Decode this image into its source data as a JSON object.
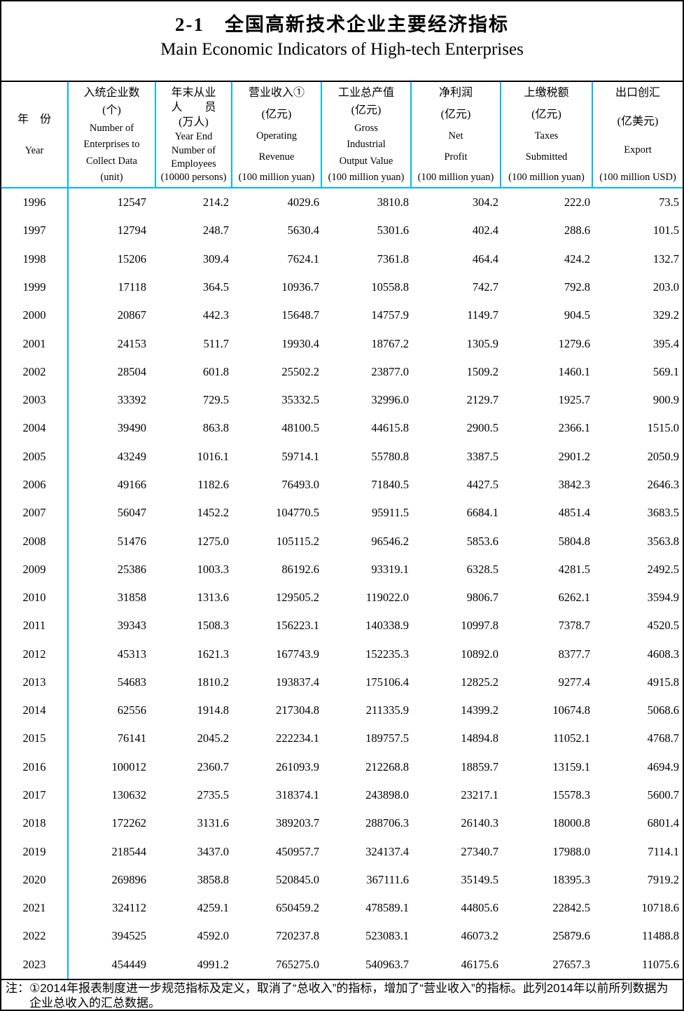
{
  "title": {
    "zh": "2-1　全国高新技术企业主要经济指标",
    "en": "Main Economic Indicators of High-tech Enterprises"
  },
  "colors": {
    "grid_accent": "#00B9F2",
    "outer_border": "#000000",
    "text": "#000000"
  },
  "table": {
    "year_header": {
      "zh": "年　份",
      "en": "Year"
    },
    "columns": [
      {
        "id": "enterprises-count",
        "lines": [
          "入统企业数",
          "(个)",
          "Number of",
          "Enterprises to",
          "Collect Data",
          "(unit)"
        ]
      },
      {
        "id": "year-end-employees",
        "lines": [
          "年末从业",
          "人　　员",
          "(万人)",
          "Year End",
          "Number of",
          "Employees",
          "(10000 persons)"
        ]
      },
      {
        "id": "operating-revenue",
        "lines": [
          "营业收入①",
          "(亿元)",
          "Operating",
          "Revenue",
          "(100 million yuan)"
        ]
      },
      {
        "id": "gross-industrial-output-value",
        "lines": [
          "工业总产值",
          "(亿元)",
          "Gross",
          "Industrial",
          "Output Value",
          "(100 million yuan)"
        ]
      },
      {
        "id": "net-profit",
        "lines": [
          "净利润",
          "(亿元)",
          "Net",
          "Profit",
          "(100 million yuan)"
        ]
      },
      {
        "id": "taxes-submitted",
        "lines": [
          "上缴税额",
          "(亿元)",
          "Taxes",
          "Submitted",
          "(100 million yuan)"
        ]
      },
      {
        "id": "export",
        "lines": [
          "出口创汇",
          "(亿美元)",
          "Export",
          "(100 million USD)"
        ]
      }
    ],
    "rows": [
      {
        "year": "1996",
        "values": [
          "12547",
          "214.2",
          "4029.6",
          "3810.8",
          "304.2",
          "222.0",
          "73.5"
        ]
      },
      {
        "year": "1997",
        "values": [
          "12794",
          "248.7",
          "5630.4",
          "5301.6",
          "402.4",
          "288.6",
          "101.5"
        ]
      },
      {
        "year": "1998",
        "values": [
          "15206",
          "309.4",
          "7624.1",
          "7361.8",
          "464.4",
          "424.2",
          "132.7"
        ]
      },
      {
        "year": "1999",
        "values": [
          "17118",
          "364.5",
          "10936.7",
          "10558.8",
          "742.7",
          "792.8",
          "203.0"
        ]
      },
      {
        "year": "2000",
        "values": [
          "20867",
          "442.3",
          "15648.7",
          "14757.9",
          "1149.7",
          "904.5",
          "329.2"
        ]
      },
      {
        "year": "2001",
        "values": [
          "24153",
          "511.7",
          "19930.4",
          "18767.2",
          "1305.9",
          "1279.6",
          "395.4"
        ]
      },
      {
        "year": "2002",
        "values": [
          "28504",
          "601.8",
          "25502.2",
          "23877.0",
          "1509.2",
          "1460.1",
          "569.1"
        ]
      },
      {
        "year": "2003",
        "values": [
          "33392",
          "729.5",
          "35332.5",
          "32996.0",
          "2129.7",
          "1925.7",
          "900.9"
        ]
      },
      {
        "year": "2004",
        "values": [
          "39490",
          "863.8",
          "48100.5",
          "44615.8",
          "2900.5",
          "2366.1",
          "1515.0"
        ]
      },
      {
        "year": "2005",
        "values": [
          "43249",
          "1016.1",
          "59714.1",
          "55780.8",
          "3387.5",
          "2901.2",
          "2050.9"
        ]
      },
      {
        "year": "2006",
        "values": [
          "49166",
          "1182.6",
          "76493.0",
          "71840.5",
          "4427.5",
          "3842.3",
          "2646.3"
        ]
      },
      {
        "year": "2007",
        "values": [
          "56047",
          "1452.2",
          "104770.5",
          "95911.5",
          "6684.1",
          "4851.4",
          "3683.5"
        ]
      },
      {
        "year": "2008",
        "values": [
          "51476",
          "1275.0",
          "105115.2",
          "96546.2",
          "5853.6",
          "5804.8",
          "3563.8"
        ]
      },
      {
        "year": "2009",
        "values": [
          "25386",
          "1003.3",
          "86192.6",
          "93319.1",
          "6328.5",
          "4281.5",
          "2492.5"
        ]
      },
      {
        "year": "2010",
        "values": [
          "31858",
          "1313.6",
          "129505.2",
          "119022.0",
          "9806.7",
          "6262.1",
          "3594.9"
        ]
      },
      {
        "year": "2011",
        "values": [
          "39343",
          "1508.3",
          "156223.1",
          "140338.9",
          "10997.8",
          "7378.7",
          "4520.5"
        ]
      },
      {
        "year": "2012",
        "values": [
          "45313",
          "1621.3",
          "167743.9",
          "152235.3",
          "10892.0",
          "8377.7",
          "4608.3"
        ]
      },
      {
        "year": "2013",
        "values": [
          "54683",
          "1810.2",
          "193837.4",
          "175106.4",
          "12825.2",
          "9277.4",
          "4915.8"
        ]
      },
      {
        "year": "2014",
        "values": [
          "62556",
          "1914.8",
          "217304.8",
          "211335.9",
          "14399.2",
          "10674.8",
          "5068.6"
        ]
      },
      {
        "year": "2015",
        "values": [
          "76141",
          "2045.2",
          "222234.1",
          "189757.5",
          "14894.8",
          "11052.1",
          "4768.7"
        ]
      },
      {
        "year": "2016",
        "values": [
          "100012",
          "2360.7",
          "261093.9",
          "212268.8",
          "18859.7",
          "13159.1",
          "4694.9"
        ]
      },
      {
        "year": "2017",
        "values": [
          "130632",
          "2735.5",
          "318374.1",
          "243898.0",
          "23217.1",
          "15578.3",
          "5600.7"
        ]
      },
      {
        "year": "2018",
        "values": [
          "172262",
          "3131.6",
          "389203.7",
          "288706.3",
          "26140.3",
          "18000.8",
          "6801.4"
        ]
      },
      {
        "year": "2019",
        "values": [
          "218544",
          "3437.0",
          "450957.7",
          "324137.4",
          "27340.7",
          "17988.0",
          "7114.1"
        ]
      },
      {
        "year": "2020",
        "values": [
          "269896",
          "3858.8",
          "520845.0",
          "367111.6",
          "35149.5",
          "18395.3",
          "7919.2"
        ]
      },
      {
        "year": "2021",
        "values": [
          "324112",
          "4259.1",
          "650459.2",
          "478589.1",
          "44805.6",
          "22842.5",
          "10718.6"
        ]
      },
      {
        "year": "2022",
        "values": [
          "394525",
          "4592.0",
          "720237.8",
          "523083.1",
          "46073.2",
          "25879.6",
          "11488.8"
        ]
      },
      {
        "year": "2023",
        "values": [
          "454449",
          "4991.2",
          "765275.0",
          "540963.7",
          "46175.6",
          "27657.3",
          "11075.6"
        ]
      }
    ]
  },
  "note": {
    "label": "注：",
    "text": "①2014年报表制度进一步规范指标及定义，取消了“总收入”的指标，增加了“营业收入”的指标。此列2014年以前所列数据为企业总收入的汇总数据。"
  }
}
